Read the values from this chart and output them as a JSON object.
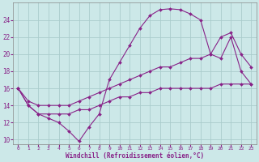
{
  "background_color": "#cce8e8",
  "line_color": "#882288",
  "grid_color": "#aacccc",
  "axis_color": "#888888",
  "text_color": "#882288",
  "xlabel": "Windchill (Refroidissement éolien,°C)",
  "xlim": [
    -0.5,
    23.5
  ],
  "ylim": [
    9.5,
    26
  ],
  "yticks": [
    10,
    12,
    14,
    16,
    18,
    20,
    22,
    24
  ],
  "xticks": [
    0,
    1,
    2,
    3,
    4,
    5,
    6,
    7,
    8,
    9,
    10,
    11,
    12,
    13,
    14,
    15,
    16,
    17,
    18,
    19,
    20,
    21,
    22,
    23
  ],
  "series1_x": [
    0,
    1,
    2,
    3,
    4,
    5,
    6,
    7,
    8,
    9,
    10,
    11,
    12,
    13,
    14,
    15,
    16,
    17,
    18,
    19,
    20,
    21,
    22,
    23
  ],
  "series1_y": [
    16,
    14,
    13,
    12.5,
    12,
    11,
    9.8,
    11.5,
    13,
    17,
    19,
    21,
    23,
    24.5,
    25.2,
    25.3,
    25.2,
    24.7,
    24,
    20,
    19.5,
    22,
    18,
    16.5
  ],
  "series2_x": [
    0,
    1,
    2,
    3,
    4,
    5,
    6,
    7,
    8,
    9,
    10,
    11,
    12,
    13,
    14,
    15,
    16,
    17,
    18,
    19,
    20,
    21,
    22,
    23
  ],
  "series2_y": [
    16,
    14.5,
    14,
    14,
    14,
    14,
    14.5,
    15,
    15.5,
    16,
    16.5,
    17,
    17.5,
    18,
    18.5,
    18.5,
    19,
    19.5,
    19.5,
    20,
    22,
    22.5,
    20,
    18.5
  ],
  "series3_x": [
    0,
    1,
    2,
    3,
    4,
    5,
    6,
    7,
    8,
    9,
    10,
    11,
    12,
    13,
    14,
    15,
    16,
    17,
    18,
    19,
    20,
    21,
    22,
    23
  ],
  "series3_y": [
    16,
    14,
    13,
    13,
    13,
    13,
    13.5,
    13.5,
    14,
    14.5,
    15,
    15,
    15.5,
    15.5,
    16,
    16,
    16,
    16,
    16,
    16,
    16.5,
    16.5,
    16.5,
    16.5
  ]
}
